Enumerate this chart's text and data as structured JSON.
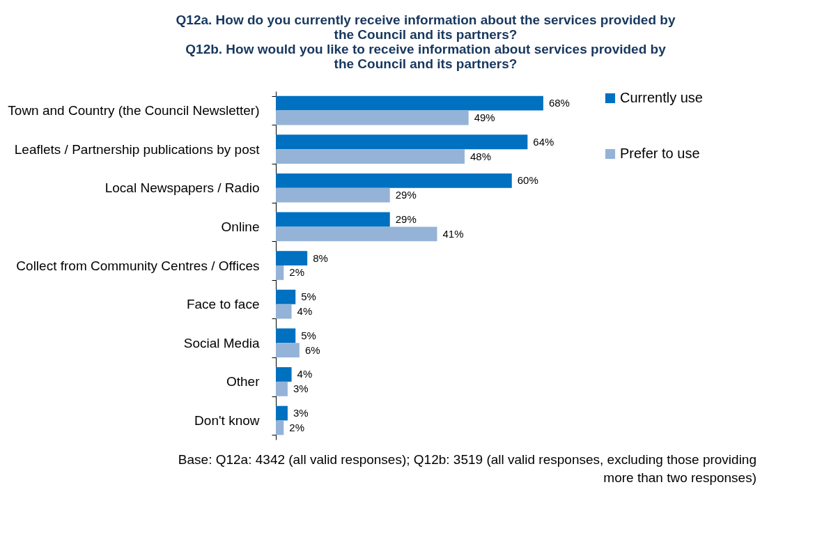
{
  "chart_data": {
    "type": "bar",
    "orientation": "horizontal",
    "title": "Q12a. How do you currently receive information about the services provided by\nthe Council and its partners?\nQ12b. How would you like to receive information about services provided by\nthe Council and its partners?",
    "categories": [
      "Town and Country (the Council Newsletter)",
      "Leaflets / Partnership publications by post",
      "Local Newspapers / Radio",
      "Online",
      "Collect from Community Centres / Offices",
      "Face to face",
      "Social Media",
      "Other",
      "Don't know"
    ],
    "series": [
      {
        "name": "Currently use",
        "color": "#0070c0",
        "values": [
          68,
          64,
          60,
          29,
          8,
          5,
          5,
          4,
          3
        ],
        "value_labels": [
          "68%",
          "64%",
          "60%",
          "29%",
          "8%",
          "5%",
          "5%",
          "4%",
          "3%"
        ]
      },
      {
        "name": "Prefer to use",
        "color": "#95b3d7",
        "values": [
          49,
          48,
          29,
          41,
          2,
          4,
          6,
          3,
          2
        ],
        "value_labels": [
          "49%",
          "48%",
          "29%",
          "41%",
          "2%",
          "4%",
          "6%",
          "3%",
          "2%"
        ]
      }
    ],
    "legend": "right",
    "grid": false,
    "annotations": [
      "Base: Q12a: 4342 (all valid responses); Q12b: 3519 (all valid responses, excluding those providing\nmore than two responses)"
    ]
  }
}
